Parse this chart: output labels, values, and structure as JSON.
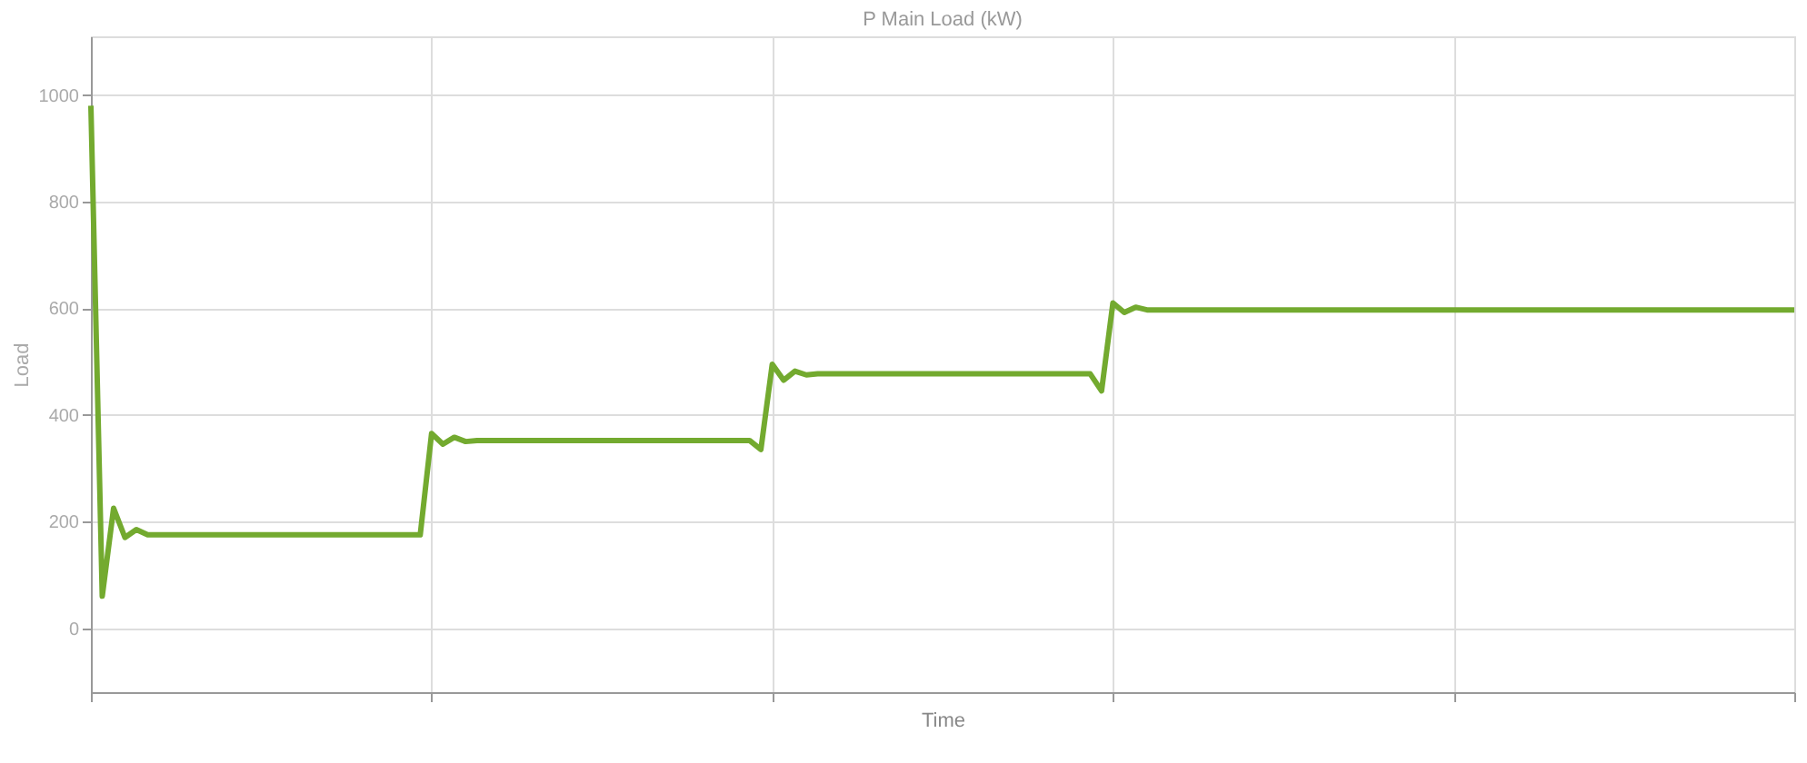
{
  "chart_data": {
    "type": "line",
    "title": "P Main Load (kW)",
    "xlabel": "Time",
    "ylabel": "Load",
    "categories": [
      null,
      null,
      null,
      null,
      null,
      null,
      null,
      null,
      null,
      null,
      null,
      null,
      null,
      null,
      null,
      null,
      null,
      null,
      null,
      null,
      null,
      null,
      null,
      null,
      null,
      null,
      null,
      null,
      null,
      null,
      null,
      null,
      null,
      null,
      null,
      null,
      null,
      null,
      null,
      null,
      null,
      null,
      null,
      null,
      null,
      null,
      null,
      null,
      null,
      null,
      null,
      null,
      null,
      null,
      null,
      null,
      null,
      null,
      null,
      null,
      null,
      null,
      null,
      null,
      null,
      null,
      null,
      null,
      null,
      null,
      null,
      null,
      null,
      null,
      null,
      null,
      null,
      null,
      null,
      null,
      null,
      null,
      null,
      null,
      null,
      null,
      null,
      null,
      null,
      null,
      null,
      null,
      null,
      null,
      null,
      null,
      null,
      null,
      null,
      null,
      null,
      null,
      null,
      null,
      null,
      null,
      null,
      null,
      null,
      null,
      null,
      null,
      null,
      null,
      null,
      null,
      null,
      null,
      null,
      null,
      null,
      null,
      null,
      null,
      null,
      null,
      null,
      null,
      null,
      null,
      null,
      null,
      null,
      null,
      null,
      null,
      null,
      null,
      null,
      null,
      null,
      null,
      null,
      null,
      null,
      null,
      null,
      null,
      null,
      null,
      null
    ],
    "series": [
      {
        "color": "#73aa2f",
        "values": [
          980,
          60,
          225,
          170,
          185,
          175,
          175,
          175,
          175,
          175,
          175,
          175,
          175,
          175,
          175,
          175,
          175,
          175,
          175,
          175,
          175,
          175,
          175,
          175,
          175,
          175,
          175,
          175,
          175,
          175,
          365,
          345,
          358,
          350,
          352,
          352,
          352,
          352,
          352,
          352,
          352,
          352,
          352,
          352,
          352,
          352,
          352,
          352,
          352,
          352,
          352,
          352,
          352,
          352,
          352,
          352,
          352,
          352,
          352,
          335,
          495,
          465,
          482,
          475,
          477,
          477,
          477,
          477,
          477,
          477,
          477,
          477,
          477,
          477,
          477,
          477,
          477,
          477,
          477,
          477,
          477,
          477,
          477,
          477,
          477,
          477,
          477,
          477,
          477,
          445,
          610,
          592,
          602,
          597,
          597,
          597,
          597,
          597,
          597,
          597,
          597,
          597,
          597,
          597,
          597,
          597,
          597,
          597,
          597,
          597,
          597,
          597,
          597,
          597,
          597,
          597,
          597,
          597,
          597,
          597,
          597,
          597,
          597,
          597,
          597,
          597,
          597,
          597,
          597,
          597,
          597,
          597,
          597,
          597,
          597,
          597,
          597,
          597,
          597,
          597,
          597,
          597,
          597,
          597,
          597,
          597,
          597,
          597,
          597,
          597,
          597
        ]
      }
    ],
    "ylim": [
      -120,
      1110
    ],
    "yticks": [
      0,
      200,
      400,
      600,
      800,
      1000
    ],
    "tick_labels": "y",
    "grid": true,
    "marker": "none",
    "line_style": "solid"
  }
}
